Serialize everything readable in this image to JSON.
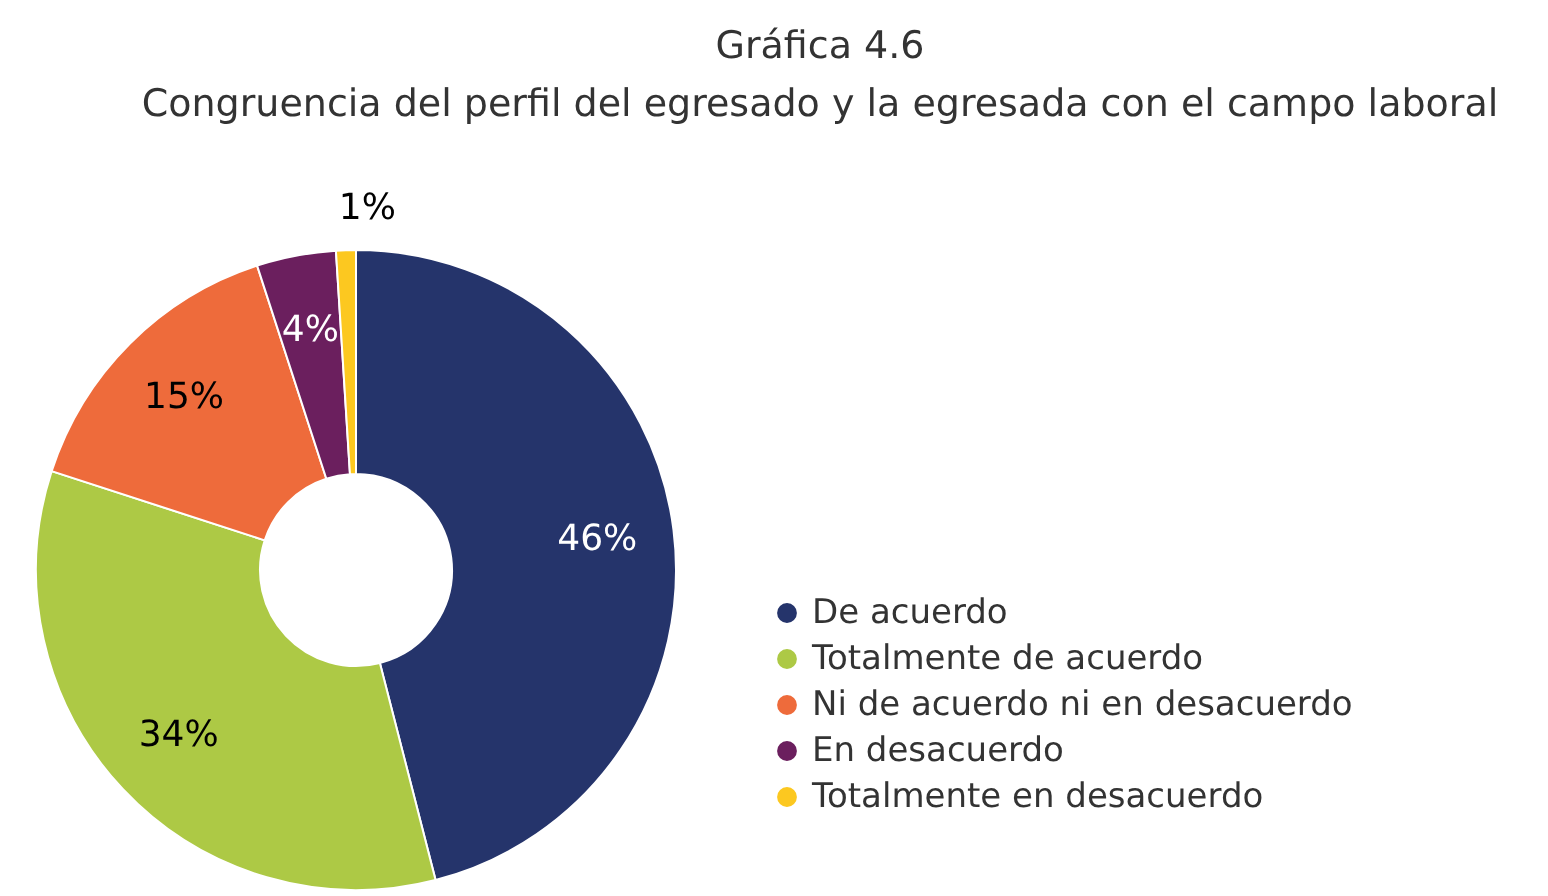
{
  "chart_data": {
    "type": "donut",
    "title": "Gráfica 4.6",
    "subtitle": "Congruencia del perfil del egresado y la egresada con el campo laboral",
    "categories": [
      "De acuerdo",
      "Totalmente de acuerdo",
      "Ni de acuerdo ni en desacuerdo",
      "En desacuerdo",
      "Totalmente en desacuerdo"
    ],
    "values": [
      46,
      34,
      15,
      4,
      1
    ],
    "value_labels": [
      "46%",
      "34%",
      "15%",
      "4%",
      "1%"
    ],
    "colors": [
      "#25346b",
      "#adc945",
      "#ee6b3b",
      "#6b1f5e",
      "#fcc820"
    ],
    "legend": "right"
  }
}
